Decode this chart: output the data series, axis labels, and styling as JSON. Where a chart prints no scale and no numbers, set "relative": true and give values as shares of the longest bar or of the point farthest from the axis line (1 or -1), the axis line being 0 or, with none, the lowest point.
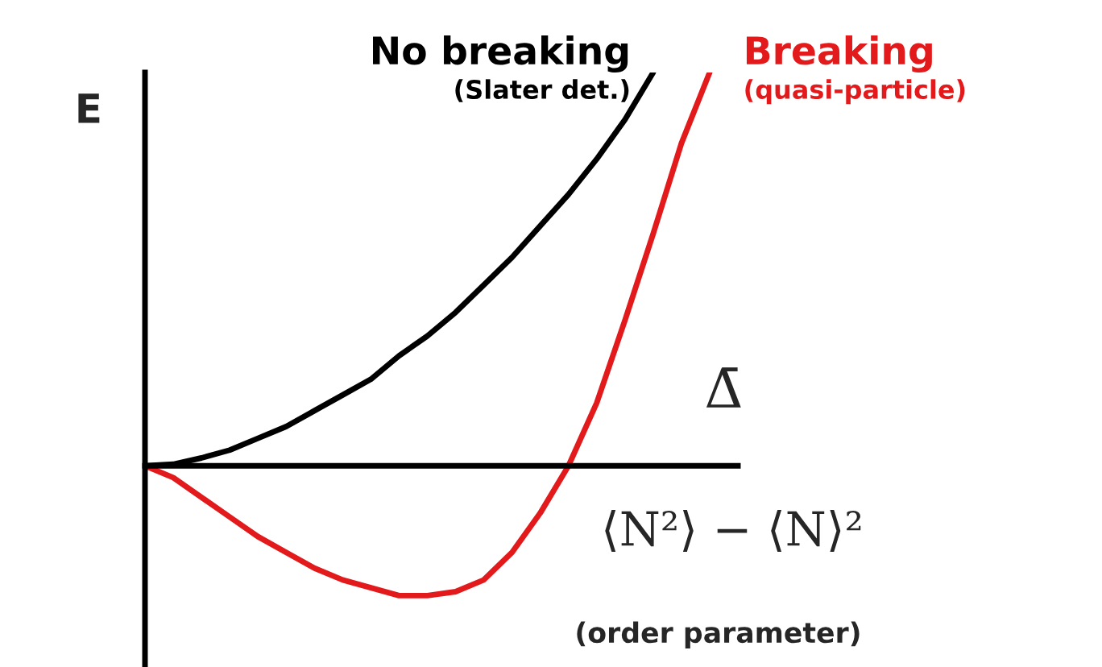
{
  "chart_data": {
    "type": "line",
    "relative": true,
    "ylabel": "E",
    "xlabel": "Δ̄",
    "annotations": [
      "⟨N²⟩ − ⟨N⟩²",
      "(order parameter)"
    ],
    "categories": [
      null,
      null,
      null,
      null,
      null,
      null,
      null,
      null,
      null,
      null,
      null,
      null,
      null,
      null,
      null,
      null,
      null,
      null,
      null,
      null,
      null
    ],
    "series": [
      {
        "name": "No breaking\n(Slater det.)",
        "color": "#000000",
        "values": [
          0,
          0.004,
          0.02,
          0.04,
          0.07,
          0.1,
          0.14,
          0.18,
          0.22,
          0.28,
          0.33,
          0.39,
          0.46,
          0.53,
          0.61,
          0.69,
          0.78,
          0.88,
          1.0,
          null,
          null
        ]
      },
      {
        "name": "Breaking\n(quasi-particle)",
        "color": "#e31a1c",
        "values": [
          0,
          -0.03,
          -0.08,
          -0.13,
          -0.18,
          -0.22,
          -0.26,
          -0.29,
          -0.31,
          -0.33,
          -0.33,
          -0.32,
          -0.29,
          -0.22,
          -0.12,
          0,
          0.16,
          0.37,
          0.59,
          0.82,
          1.0
        ]
      }
    ],
    "tick_labels": false,
    "grid": false,
    "legend": false,
    "marker": "none",
    "line_style": "solid"
  }
}
